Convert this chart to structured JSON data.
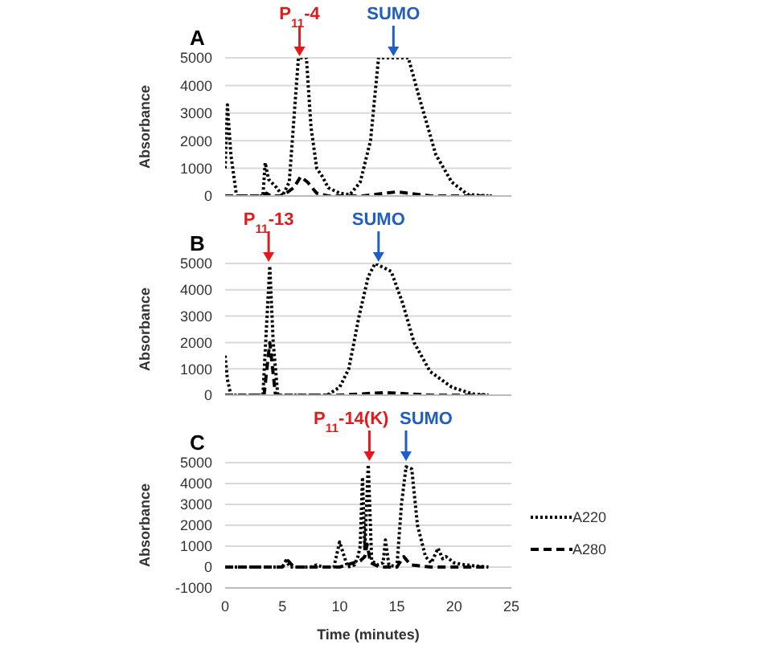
{
  "chart_data": [
    {
      "type": "line",
      "title": "A",
      "ylabel": "Absorbance",
      "xlim": [
        0,
        25
      ],
      "xticks": [
        0,
        5,
        10,
        15,
        20,
        25
      ],
      "ylim": [
        0,
        5000
      ],
      "yticks": [
        0,
        1000,
        2000,
        3000,
        4000,
        5000
      ],
      "grid": "y",
      "tick_labels": "y",
      "legend": false,
      "marker": "none",
      "annotations": [
        {
          "text": "P$_{11}$-4",
          "x": 6.5,
          "y": 5000
        },
        {
          "text": "SUMO",
          "x": 14.7,
          "y": 5000
        }
      ],
      "series": [
        {
          "color": "#000000",
          "line_style": "dotted",
          "x": [
            0,
            0.2,
            0.5,
            1,
            3.3,
            3.5,
            3.8,
            4.5,
            5,
            5.6,
            6.4,
            7.1,
            7.5,
            8,
            8.5,
            9,
            10,
            10.9,
            11.8,
            12.7,
            13.4,
            16,
            17,
            18.4,
            19.8,
            21.2,
            23
          ],
          "values": [
            1000,
            3300,
            1500,
            0,
            0,
            1200,
            600,
            300,
            0,
            500,
            5000,
            5000,
            2500,
            1000,
            700,
            300,
            100,
            50,
            500,
            2000,
            5000,
            5000,
            3500,
            1500,
            500,
            50,
            0
          ]
        },
        {
          "color": "#000000",
          "line_style": "dashed",
          "x": [
            0,
            3.3,
            3.6,
            4,
            5,
            6,
            6.6,
            7.2,
            8,
            9,
            12,
            14,
            15,
            16,
            18,
            20,
            23.3
          ],
          "values": [
            0,
            0,
            100,
            0,
            0,
            300,
            700,
            500,
            100,
            0,
            0,
            100,
            150,
            100,
            0,
            0,
            0
          ]
        }
      ]
    },
    {
      "type": "line",
      "title": "B",
      "ylabel": "Absorbance",
      "xlim": [
        0,
        25
      ],
      "xticks": [
        0,
        5,
        10,
        15,
        20,
        25
      ],
      "ylim": [
        0,
        5000
      ],
      "yticks": [
        0,
        1000,
        2000,
        3000,
        4000,
        5000
      ],
      "grid": "y",
      "tick_labels": "y",
      "legend": false,
      "marker": "none",
      "annotations": [
        {
          "text": "P$_{11}$-13",
          "x": 3.8,
          "y": 5000
        },
        {
          "text": "SUMO",
          "x": 13.4,
          "y": 5000
        }
      ],
      "series": [
        {
          "color": "#000000",
          "line_style": "dotted",
          "x": [
            0,
            0.2,
            0.5,
            3.3,
            3.6,
            3.9,
            4.2,
            4.6,
            8.9,
            10,
            10.8,
            11.7,
            12.5,
            13.1,
            14.5,
            15.5,
            16.5,
            17.9,
            19.8,
            21.6,
            23
          ],
          "values": [
            1500,
            600,
            0,
            0,
            2500,
            4900,
            2000,
            0,
            0,
            300,
            1000,
            3000,
            4500,
            5000,
            4700,
            3500,
            2000,
            900,
            300,
            50,
            0
          ]
        },
        {
          "color": "#000000",
          "line_style": "dashed",
          "x": [
            0,
            3.4,
            3.9,
            4.4,
            5,
            10,
            14,
            18,
            23
          ],
          "values": [
            0,
            0,
            2000,
            0,
            0,
            0,
            100,
            0,
            0
          ]
        }
      ]
    },
    {
      "type": "line",
      "title": "C",
      "xlabel": "Time (minutes)",
      "ylabel": "Absorbance",
      "xlim": [
        0,
        25
      ],
      "xticks": [
        0,
        5,
        10,
        15,
        20,
        25
      ],
      "ylim": [
        -1000,
        5000
      ],
      "yticks": [
        -1000,
        0,
        1000,
        2000,
        3000,
        4000,
        5000
      ],
      "grid": "y",
      "legend": "right",
      "marker": "none",
      "annotations": [
        {
          "text": "P$_{11}$-14(K)",
          "x": 12.6,
          "y": 5000
        },
        {
          "text": "SUMO",
          "x": 15.8,
          "y": 5000
        }
      ],
      "series": [
        {
          "name": "A220",
          "color": "#000000",
          "line_style": "dotted",
          "x": [
            0,
            5,
            5.3,
            5.7,
            7.5,
            8,
            8.5,
            9.5,
            10,
            10.7,
            11.3,
            11.6,
            11.8,
            12,
            12.2,
            12.5,
            12.8,
            13.3,
            13.8,
            14,
            14.3,
            15,
            15.4,
            15.8,
            16.3,
            16.8,
            17.5,
            18,
            18.6,
            19,
            19.3,
            20,
            21,
            23
          ],
          "values": [
            0,
            0,
            300,
            0,
            0,
            100,
            0,
            0,
            1200,
            0,
            100,
            500,
            1000,
            4300,
            800,
            4900,
            300,
            100,
            200,
            1300,
            100,
            0,
            3000,
            4800,
            4700,
            2000,
            500,
            200,
            900,
            400,
            500,
            200,
            100,
            0
          ]
        },
        {
          "name": "A280",
          "color": "#000000",
          "line_style": "dashed",
          "x": [
            0,
            5,
            5.5,
            6,
            10,
            11.8,
            12.2,
            12.4,
            12.7,
            13.5,
            15,
            15.6,
            16.2,
            18,
            23
          ],
          "values": [
            0,
            0,
            300,
            0,
            0,
            300,
            500,
            1100,
            200,
            0,
            0,
            500,
            100,
            0,
            0
          ]
        }
      ]
    }
  ]
}
